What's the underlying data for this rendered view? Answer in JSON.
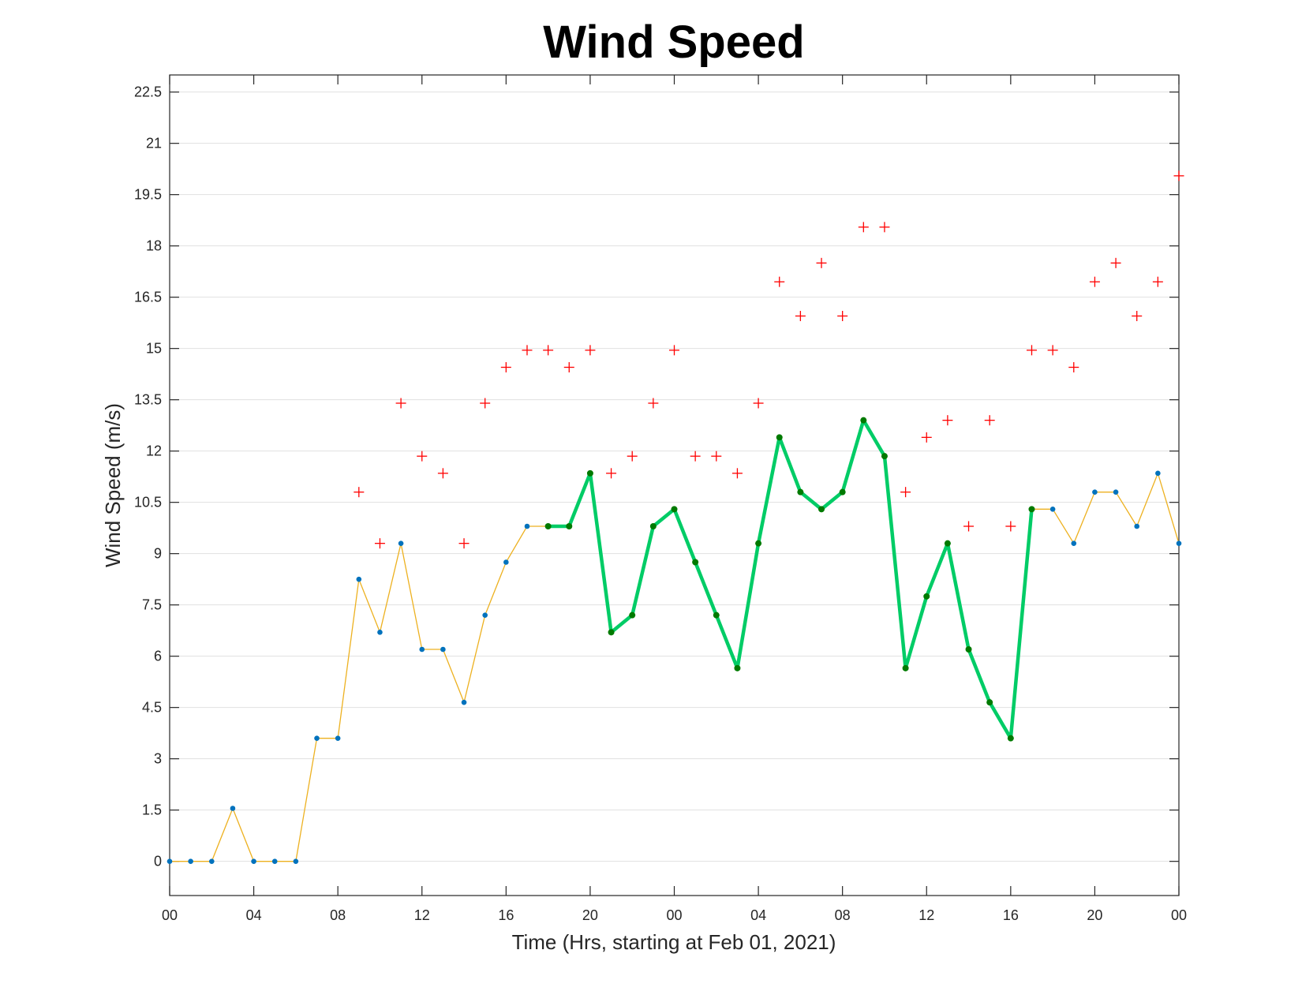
{
  "chart_data": {
    "type": "line",
    "title": "Wind Speed",
    "xlabel": "Time (Hrs, starting at Feb 01, 2021)",
    "ylabel": "Wind Speed (m/s)",
    "ylim": [
      -1,
      23
    ],
    "xlim": [
      "00",
      "00"
    ],
    "grid": "horizontal",
    "y_ticks": [
      "0",
      "1.5",
      "3",
      "4.5",
      "6",
      "7.5",
      "9",
      "10.5",
      "12",
      "13.5",
      "15",
      "16.5",
      "18",
      "19.5",
      "21",
      "22.5"
    ],
    "x_ticks": [
      "00",
      "04",
      "08",
      "12",
      "16",
      "20",
      "00",
      "04",
      "08",
      "12",
      "16",
      "20",
      "00"
    ],
    "x_hours": [
      0,
      1,
      2,
      3,
      4,
      5,
      6,
      7,
      8,
      9,
      10,
      11,
      12,
      13,
      14,
      15,
      16,
      17,
      18,
      19,
      20,
      21,
      22,
      23,
      24,
      25,
      26,
      27,
      28,
      29,
      30,
      31,
      32,
      33,
      34,
      35,
      36,
      37,
      38,
      39,
      40,
      41,
      42,
      43,
      44,
      45,
      46,
      47,
      48
    ],
    "series": [
      {
        "values": [
          0,
          0,
          0,
          1.55,
          0,
          0,
          0,
          3.6,
          3.6,
          8.25,
          6.7,
          9.3,
          6.2,
          6.2,
          4.65,
          7.2,
          8.75,
          9.8,
          9.8,
          9.8,
          11.35,
          6.7,
          7.2,
          9.8,
          10.3,
          8.75,
          7.2,
          5.65,
          9.3,
          12.4,
          10.8,
          10.3,
          10.8,
          12.9,
          11.85,
          5.65,
          7.75,
          9.3,
          6.2,
          4.65,
          3.6,
          10.3,
          10.3,
          9.3,
          10.8,
          10.8,
          9.8,
          11.35,
          9.3
        ],
        "line_color": "#EDB120",
        "marker_color": "#0072BD"
      },
      {
        "segment_start_index": 18,
        "segment_end_index": 41,
        "line_color": "#00CC66",
        "marker_color": "#007A00"
      },
      {
        "values": [
          null,
          null,
          null,
          null,
          null,
          null,
          null,
          null,
          null,
          10.8,
          9.3,
          13.4,
          11.85,
          11.35,
          9.3,
          13.4,
          14.45,
          14.95,
          14.95,
          14.45,
          14.95,
          11.35,
          11.85,
          13.4,
          14.95,
          11.85,
          11.85,
          11.35,
          13.4,
          16.95,
          15.95,
          17.5,
          15.95,
          18.55,
          18.55,
          10.8,
          12.4,
          12.9,
          9.8,
          12.9,
          9.8,
          14.95,
          14.95,
          14.45,
          16.95,
          17.5,
          15.95,
          16.95,
          20.05
        ],
        "marker": "+",
        "marker_color": "#FF0000"
      }
    ]
  }
}
